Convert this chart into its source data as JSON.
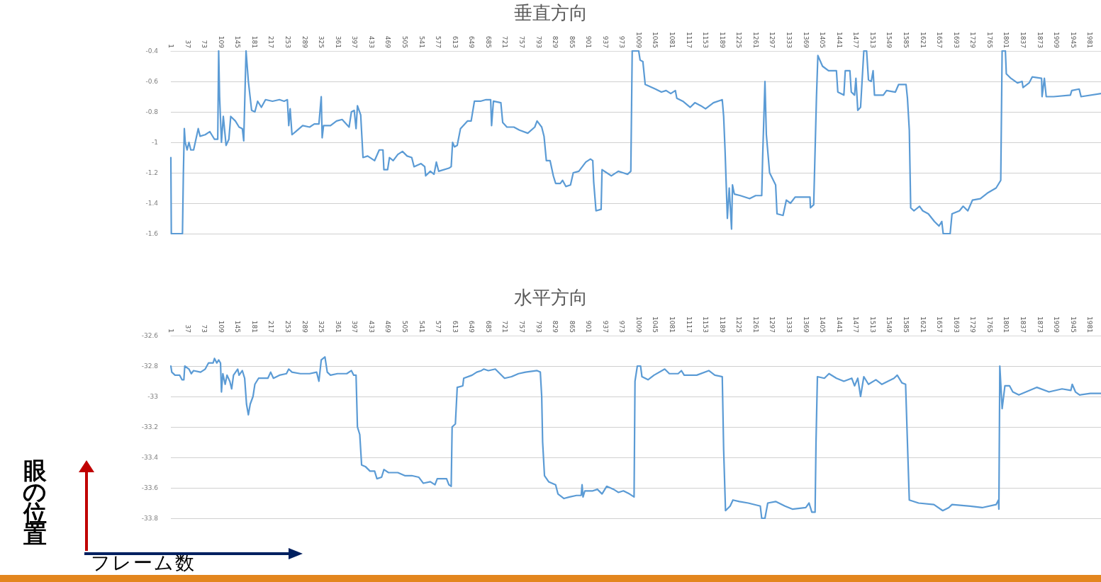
{
  "chart_data": [
    {
      "type": "line",
      "title": "垂直方向",
      "xlim": [
        1,
        2005
      ],
      "xticks": [
        1,
        37,
        73,
        109,
        145,
        181,
        217,
        253,
        289,
        325,
        361,
        397,
        433,
        469,
        505,
        541,
        577,
        613,
        649,
        685,
        721,
        757,
        793,
        829,
        865,
        901,
        937,
        973,
        1009,
        1045,
        1081,
        1117,
        1153,
        1189,
        1225,
        1261,
        1297,
        1333,
        1369,
        1405,
        1441,
        1477,
        1513,
        1549,
        1585,
        1621,
        1657,
        1693,
        1729,
        1765,
        1801,
        1837,
        1873,
        1909,
        1945,
        1981
      ],
      "ylim": [
        -1.6,
        -0.4
      ],
      "yticks": [
        -1.6,
        -1.4,
        -1.2,
        -1,
        -0.8,
        -0.6,
        -0.4
      ],
      "grid": "y",
      "marker": "none",
      "line_style": "solid",
      "series": [
        {
          "color": "#5b9bd5",
          "x": [
            1,
            2,
            26,
            28,
            30,
            32,
            36,
            40,
            44,
            50,
            60,
            64,
            75,
            85,
            95,
            102,
            104,
            106,
            110,
            114,
            120,
            126,
            130,
            140,
            148,
            155,
            158,
            163,
            168,
            175,
            182,
            188,
            196,
            205,
            220,
            235,
            245,
            252,
            255,
            258,
            262,
            270,
            285,
            300,
            310,
            320,
            325,
            327,
            330,
            345,
            358,
            370,
            385,
            390,
            396,
            400,
            403,
            410,
            415,
            425,
            440,
            450,
            458,
            460,
            468,
            472,
            480,
            490,
            500,
            510,
            520,
            525,
            540,
            548,
            550,
            560,
            568,
            573,
            578,
            600,
            605,
            608,
            612,
            618,
            625,
            640,
            648,
            655,
            668,
            680,
            690,
            692,
            696,
            712,
            716,
            725,
            740,
            752,
            770,
            785,
            790,
            800,
            805,
            810,
            818,
            825,
            830,
            840,
            845,
            852,
            862,
            868,
            880,
            895,
            905,
            910,
            912,
            917,
            928,
            930,
            940,
            950,
            965,
            975,
            985,
            992,
            995,
            1009,
            1012,
            1018,
            1023,
            1045,
            1058,
            1068,
            1078,
            1088,
            1091,
            1104,
            1120,
            1130,
            1143,
            1153,
            1170,
            1189,
            1192,
            1195,
            1200,
            1204,
            1209,
            1211,
            1215,
            1228,
            1248,
            1261,
            1274,
            1276,
            1281,
            1284,
            1291,
            1304,
            1307,
            1320,
            1327,
            1336,
            1346,
            1366,
            1378,
            1379,
            1386,
            1392,
            1395,
            1405,
            1418,
            1435,
            1438,
            1451,
            1454,
            1464,
            1467,
            1474,
            1477,
            1481,
            1487,
            1494,
            1500,
            1504,
            1510,
            1514,
            1517,
            1536,
            1543,
            1562,
            1569,
            1585,
            1588,
            1592,
            1595,
            1602,
            1614,
            1621,
            1633,
            1646,
            1656,
            1662,
            1665,
            1680,
            1684,
            1700,
            1708,
            1718,
            1728,
            1745,
            1762,
            1779,
            1789,
            1792,
            1799,
            1801,
            1811,
            1825,
            1835,
            1837,
            1850,
            1857,
            1877,
            1878,
            1883,
            1887,
            1903,
            1939,
            1942,
            1958,
            1962,
            2005
          ],
          "values": [
            -1.1,
            -1.6,
            -1.6,
            -1.2,
            -0.91,
            -1.0,
            -1.05,
            -1.0,
            -1.05,
            -1.05,
            -0.91,
            -0.96,
            -0.95,
            -0.93,
            -0.98,
            -0.98,
            -0.4,
            -0.7,
            -1.0,
            -0.83,
            -1.02,
            -0.98,
            -0.83,
            -0.86,
            -0.9,
            -0.91,
            -0.99,
            -0.4,
            -0.6,
            -0.79,
            -0.8,
            -0.73,
            -0.77,
            -0.72,
            -0.73,
            -0.72,
            -0.73,
            -0.72,
            -0.89,
            -0.78,
            -0.95,
            -0.93,
            -0.89,
            -0.9,
            -0.88,
            -0.88,
            -0.7,
            -0.97,
            -0.89,
            -0.89,
            -0.86,
            -0.85,
            -0.9,
            -0.8,
            -0.79,
            -0.91,
            -0.76,
            -0.82,
            -1.1,
            -1.09,
            -1.12,
            -1.05,
            -1.05,
            -1.18,
            -1.18,
            -1.1,
            -1.12,
            -1.08,
            -1.06,
            -1.09,
            -1.1,
            -1.16,
            -1.14,
            -1.16,
            -1.22,
            -1.19,
            -1.21,
            -1.13,
            -1.19,
            -1.17,
            -1.16,
            -1.0,
            -1.03,
            -1.02,
            -0.91,
            -0.86,
            -0.86,
            -0.73,
            -0.73,
            -0.72,
            -0.72,
            -0.89,
            -0.73,
            -0.74,
            -0.87,
            -0.9,
            -0.9,
            -0.92,
            -0.94,
            -0.9,
            -0.86,
            -0.9,
            -0.96,
            -1.12,
            -1.12,
            -1.22,
            -1.27,
            -1.27,
            -1.25,
            -1.29,
            -1.28,
            -1.2,
            -1.19,
            -1.13,
            -1.11,
            -1.12,
            -1.26,
            -1.45,
            -1.44,
            -1.18,
            -1.2,
            -1.22,
            -1.19,
            -1.2,
            -1.21,
            -1.19,
            -0.4,
            -0.4,
            -0.46,
            -0.47,
            -0.62,
            -0.65,
            -0.67,
            -0.66,
            -0.68,
            -0.66,
            -0.71,
            -0.73,
            -0.77,
            -0.74,
            -0.76,
            -0.78,
            -0.74,
            -0.72,
            -0.83,
            -1.05,
            -1.5,
            -1.3,
            -1.57,
            -1.28,
            -1.34,
            -1.35,
            -1.37,
            -1.35,
            -1.35,
            -1.1,
            -0.6,
            -0.95,
            -1.2,
            -1.28,
            -1.47,
            -1.48,
            -1.38,
            -1.4,
            -1.36,
            -1.36,
            -1.36,
            -1.43,
            -1.41,
            -0.7,
            -0.43,
            -0.5,
            -0.53,
            -0.53,
            -0.67,
            -0.69,
            -0.53,
            -0.53,
            -0.67,
            -0.69,
            -0.58,
            -0.79,
            -0.77,
            -0.4,
            -0.4,
            -0.59,
            -0.6,
            -0.53,
            -0.69,
            -0.69,
            -0.66,
            -0.67,
            -0.62,
            -0.62,
            -0.71,
            -0.92,
            -1.43,
            -1.45,
            -1.42,
            -1.45,
            -1.47,
            -1.52,
            -1.55,
            -1.52,
            -1.6,
            -1.6,
            -1.47,
            -1.45,
            -1.42,
            -1.45,
            -1.38,
            -1.37,
            -1.33,
            -1.3,
            -1.25,
            -0.4,
            -0.4,
            -0.55,
            -0.58,
            -0.61,
            -0.6,
            -0.64,
            -0.61,
            -0.57,
            -0.58,
            -0.7,
            -0.58,
            -0.7,
            -0.7,
            -0.69,
            -0.66,
            -0.65,
            -0.7,
            -0.68
          ]
        }
      ]
    },
    {
      "type": "line",
      "title": "水平方向",
      "xlabel": "フレーム数",
      "ylabel": "眼の位置",
      "xlim": [
        1,
        2005
      ],
      "xticks": [
        1,
        37,
        73,
        109,
        145,
        181,
        217,
        253,
        289,
        325,
        361,
        397,
        433,
        469,
        505,
        541,
        577,
        613,
        649,
        685,
        721,
        757,
        793,
        829,
        865,
        901,
        937,
        973,
        1009,
        1045,
        1081,
        1117,
        1153,
        1189,
        1225,
        1261,
        1297,
        1333,
        1369,
        1405,
        1441,
        1477,
        1513,
        1549,
        1585,
        1621,
        1657,
        1693,
        1729,
        1765,
        1801,
        1837,
        1873,
        1909,
        1945,
        1981
      ],
      "ylim": [
        -33.8,
        -32.6
      ],
      "yticks": [
        -33.8,
        -33.6,
        -33.4,
        -33.2,
        -33,
        -32.8,
        -32.6
      ],
      "grid": "y",
      "marker": "none",
      "line_style": "solid",
      "series": [
        {
          "color": "#5b9bd5",
          "x": [
            1,
            3,
            10,
            20,
            25,
            29,
            31,
            40,
            45,
            50,
            65,
            75,
            82,
            92,
            95,
            100,
            104,
            108,
            110,
            113,
            118,
            122,
            128,
            132,
            136,
            145,
            148,
            155,
            160,
            164,
            168,
            172,
            178,
            182,
            190,
            200,
            210,
            216,
            222,
            235,
            250,
            255,
            262,
            280,
            300,
            315,
            320,
            325,
            333,
            338,
            345,
            360,
            380,
            390,
            395,
            400,
            403,
            408,
            412,
            420,
            430,
            440,
            445,
            455,
            460,
            470,
            490,
            505,
            520,
            535,
            545,
            560,
            570,
            575,
            595,
            600,
            605,
            607,
            614,
            618,
            630,
            632,
            650,
            660,
            670,
            675,
            685,
            700,
            710,
            720,
            735,
            750,
            765,
            790,
            797,
            800,
            802,
            806,
            815,
            830,
            835,
            848,
            860,
            875,
            885,
            887,
            889,
            893,
            910,
            920,
            930,
            940,
            955,
            965,
            976,
            989,
            999,
            1001,
            1006,
            1013,
            1016,
            1029,
            1042,
            1065,
            1075,
            1094,
            1101,
            1107,
            1134,
            1160,
            1173,
            1189,
            1192,
            1196,
            1206,
            1212,
            1226,
            1245,
            1271,
            1274,
            1281,
            1287,
            1304,
            1324,
            1340,
            1369,
            1376,
            1382,
            1389,
            1391,
            1394,
            1409,
            1419,
            1435,
            1451,
            1468,
            1474,
            1481,
            1487,
            1494,
            1504,
            1520,
            1533,
            1559,
            1566,
            1576,
            1584,
            1589,
            1592,
            1612,
            1645,
            1664,
            1677,
            1684,
            1723,
            1749,
            1779,
            1784,
            1785,
            1787,
            1792,
            1798,
            1808,
            1815,
            1828,
            1867,
            1893,
            1921,
            1940,
            1943,
            1950,
            1959,
            1982,
            2005
          ],
          "values": [
            -32.8,
            -32.84,
            -32.86,
            -32.86,
            -32.89,
            -32.89,
            -32.8,
            -32.82,
            -32.85,
            -32.83,
            -32.84,
            -32.82,
            -32.78,
            -32.78,
            -32.75,
            -32.78,
            -32.76,
            -32.78,
            -32.97,
            -32.85,
            -32.92,
            -32.86,
            -32.9,
            -32.95,
            -32.86,
            -32.82,
            -32.86,
            -32.83,
            -32.88,
            -33.05,
            -33.12,
            -33.05,
            -33.0,
            -32.92,
            -32.88,
            -32.88,
            -32.88,
            -32.84,
            -32.88,
            -32.86,
            -32.85,
            -32.82,
            -32.84,
            -32.85,
            -32.85,
            -32.84,
            -32.9,
            -32.76,
            -32.74,
            -32.84,
            -32.86,
            -32.85,
            -32.85,
            -32.83,
            -32.86,
            -32.86,
            -33.2,
            -33.25,
            -33.45,
            -33.46,
            -33.49,
            -33.49,
            -33.54,
            -33.53,
            -33.48,
            -33.5,
            -33.5,
            -33.52,
            -33.52,
            -33.53,
            -33.57,
            -33.56,
            -33.58,
            -33.54,
            -33.54,
            -33.58,
            -33.59,
            -33.2,
            -33.18,
            -32.94,
            -32.93,
            -32.88,
            -32.86,
            -32.84,
            -32.83,
            -32.82,
            -32.83,
            -32.82,
            -32.85,
            -32.88,
            -32.87,
            -32.85,
            -32.84,
            -32.83,
            -32.84,
            -33.0,
            -33.3,
            -33.52,
            -33.56,
            -33.58,
            -33.64,
            -33.67,
            -33.66,
            -33.65,
            -33.65,
            -33.58,
            -33.66,
            -33.62,
            -33.62,
            -33.61,
            -33.64,
            -33.59,
            -33.61,
            -33.63,
            -33.62,
            -33.64,
            -33.66,
            -32.9,
            -32.8,
            -32.8,
            -32.87,
            -32.89,
            -32.86,
            -32.82,
            -32.85,
            -32.85,
            -32.83,
            -32.86,
            -32.86,
            -32.83,
            -32.86,
            -32.87,
            -33.35,
            -33.75,
            -33.72,
            -33.68,
            -33.69,
            -33.7,
            -33.72,
            -33.8,
            -33.8,
            -33.7,
            -33.69,
            -33.72,
            -33.74,
            -33.73,
            -33.7,
            -33.76,
            -33.76,
            -33.3,
            -32.87,
            -32.88,
            -32.85,
            -32.88,
            -32.9,
            -32.88,
            -32.93,
            -32.88,
            -33.0,
            -32.87,
            -32.92,
            -32.89,
            -32.92,
            -32.88,
            -32.86,
            -32.91,
            -32.92,
            -33.4,
            -33.68,
            -33.7,
            -33.71,
            -33.75,
            -33.73,
            -33.71,
            -33.72,
            -33.73,
            -33.71,
            -33.68,
            -33.74,
            -32.8,
            -33.08,
            -32.93,
            -32.93,
            -32.97,
            -32.99,
            -32.94,
            -32.97,
            -32.95,
            -32.96,
            -32.92,
            -32.97,
            -32.99,
            -32.98,
            -32.98
          ]
        }
      ]
    }
  ]
}
